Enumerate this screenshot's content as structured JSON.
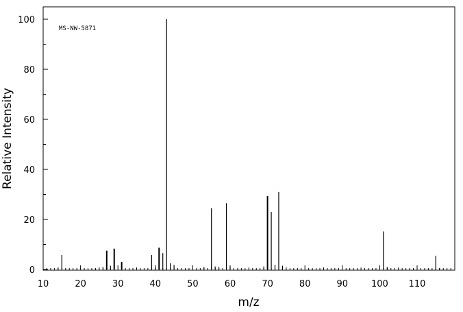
{
  "chart_data": {
    "type": "bar",
    "title": "",
    "annotation": "MS-NW-5871",
    "xlabel": "m/z",
    "ylabel": "Relative Intensity",
    "xlim": [
      10,
      119
    ],
    "ylim": [
      0,
      100
    ],
    "x_ticks": [
      10,
      20,
      30,
      40,
      50,
      60,
      70,
      80,
      90,
      100,
      110
    ],
    "y_ticks": [
      0,
      20,
      40,
      60,
      80,
      100
    ],
    "grid": false,
    "legend": "none",
    "colors": {
      "bars": "#000000",
      "axes": "#000000",
      "background": "#ffffff"
    },
    "peaks": [
      {
        "x": 14,
        "y": 0.8
      },
      {
        "x": 15,
        "y": 5.8
      },
      {
        "x": 26,
        "y": 1.0
      },
      {
        "x": 27,
        "y": 7.5
      },
      {
        "x": 28,
        "y": 1.5
      },
      {
        "x": 29,
        "y": 8.3
      },
      {
        "x": 31,
        "y": 3.0
      },
      {
        "x": 39,
        "y": 5.8
      },
      {
        "x": 40,
        "y": 0.8
      },
      {
        "x": 41,
        "y": 8.7
      },
      {
        "x": 42,
        "y": 6.5
      },
      {
        "x": 43,
        "y": 100
      },
      {
        "x": 44,
        "y": 2.5
      },
      {
        "x": 45,
        "y": 1.8
      },
      {
        "x": 53,
        "y": 1.0
      },
      {
        "x": 55,
        "y": 24.5
      },
      {
        "x": 56,
        "y": 1.2
      },
      {
        "x": 57,
        "y": 1.0
      },
      {
        "x": 59,
        "y": 26.5
      },
      {
        "x": 60,
        "y": 1.2
      },
      {
        "x": 69,
        "y": 1.2
      },
      {
        "x": 70,
        "y": 29.3
      },
      {
        "x": 71,
        "y": 23.0
      },
      {
        "x": 72,
        "y": 1.8
      },
      {
        "x": 73,
        "y": 31.0
      },
      {
        "x": 74,
        "y": 1.5
      },
      {
        "x": 101,
        "y": 15.2
      },
      {
        "x": 102,
        "y": 1.0
      },
      {
        "x": 115,
        "y": 5.5
      },
      {
        "x": 116,
        "y": 0.6
      }
    ]
  }
}
